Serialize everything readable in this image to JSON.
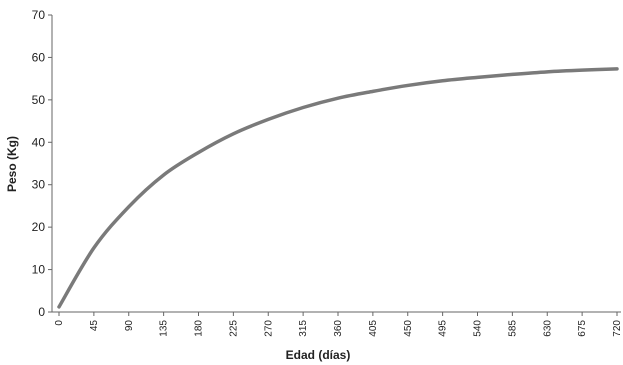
{
  "chart_data": {
    "type": "line",
    "title": "",
    "xlabel": "Edad (días)",
    "ylabel": "Peso (Kg)",
    "xlim": [
      0,
      720
    ],
    "ylim": [
      0,
      70
    ],
    "x_ticks": [
      0,
      45,
      90,
      135,
      180,
      225,
      270,
      315,
      360,
      405,
      450,
      495,
      540,
      585,
      630,
      675,
      720
    ],
    "y_ticks": [
      0,
      10,
      20,
      30,
      40,
      50,
      60,
      70
    ],
    "grid": false,
    "legend": "none",
    "series": [
      {
        "color": "#7a7a7a",
        "x": [
          0,
          45,
          90,
          135,
          180,
          225,
          270,
          315,
          360,
          405,
          450,
          495,
          540,
          585,
          630,
          675,
          720
        ],
        "y": [
          1.2,
          15.1,
          24.8,
          32.3,
          37.6,
          42.0,
          45.4,
          48.2,
          50.4,
          52.0,
          53.4,
          54.5,
          55.3,
          56.0,
          56.6,
          57.0,
          57.3
        ]
      }
    ]
  }
}
